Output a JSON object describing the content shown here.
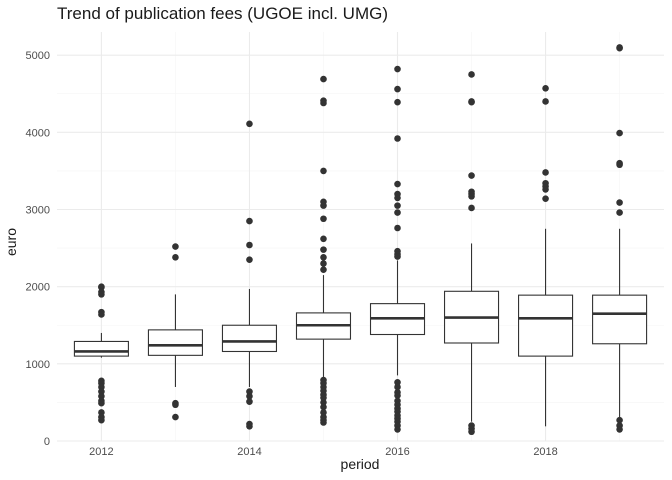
{
  "chart_data": {
    "type": "boxplot",
    "title": "Trend of publication fees (UGOE incl. UMG)",
    "xlabel": "period",
    "ylabel": "euro",
    "ylim": [
      0,
      5300
    ],
    "xlim": [
      2011.4,
      2019.6
    ],
    "y_ticks": [
      0,
      1000,
      2000,
      3000,
      4000,
      5000
    ],
    "x_ticks": [
      2012,
      2014,
      2016,
      2018
    ],
    "grid": true,
    "legend": "none",
    "colors": {
      "box_stroke": "#333333",
      "outlier": "#333333",
      "grid_major": "#ebebeb",
      "grid_minor": "#f5f5f5"
    },
    "series": [
      {
        "x": 2012,
        "min": 1080,
        "q1": 1100,
        "median": 1160,
        "q3": 1290,
        "max": 1400,
        "outliers": [
          2000,
          1990,
          1930,
          1900,
          1670,
          1640,
          780,
          750,
          700,
          640,
          580,
          520,
          490,
          370,
          310,
          270
        ]
      },
      {
        "x": 2013,
        "min": 700,
        "q1": 1110,
        "median": 1240,
        "q3": 1440,
        "max": 1900,
        "outliers": [
          2520,
          2380,
          490,
          470,
          310
        ]
      },
      {
        "x": 2014,
        "min": 700,
        "q1": 1160,
        "median": 1290,
        "q3": 1500,
        "max": 1970,
        "outliers": [
          4110,
          2850,
          2540,
          2350,
          640,
          580,
          510,
          220,
          190
        ]
      },
      {
        "x": 2015,
        "min": 830,
        "q1": 1320,
        "median": 1500,
        "q3": 1660,
        "max": 2150,
        "outliers": [
          4690,
          4410,
          4380,
          3500,
          3100,
          3050,
          2880,
          2620,
          2480,
          2380,
          2300,
          2220,
          790,
          750,
          700,
          650,
          600,
          560,
          500,
          440,
          370,
          310,
          270,
          240
        ]
      },
      {
        "x": 2016,
        "min": 850,
        "q1": 1380,
        "median": 1590,
        "q3": 1780,
        "max": 2340,
        "outliers": [
          4820,
          4560,
          4390,
          3920,
          3330,
          3200,
          3150,
          3050,
          2960,
          2760,
          2460,
          2420,
          2390,
          760,
          700,
          630,
          590,
          520,
          470,
          420,
          380,
          330,
          290,
          250,
          200,
          150
        ]
      },
      {
        "x": 2017,
        "min": 250,
        "q1": 1270,
        "median": 1600,
        "q3": 1940,
        "max": 2560,
        "outliers": [
          4750,
          4400,
          4390,
          3440,
          3230,
          3200,
          3170,
          3020,
          200,
          160,
          120
        ]
      },
      {
        "x": 2018,
        "min": 190,
        "q1": 1100,
        "median": 1590,
        "q3": 1890,
        "max": 2750,
        "outliers": [
          4570,
          4400,
          3480,
          3340,
          3300,
          3260,
          3140
        ]
      },
      {
        "x": 2019,
        "min": 300,
        "q1": 1260,
        "median": 1650,
        "q3": 1890,
        "max": 2750,
        "outliers": [
          5100,
          5090,
          3990,
          3600,
          3580,
          3090,
          2960,
          270,
          200,
          150
        ]
      }
    ]
  }
}
